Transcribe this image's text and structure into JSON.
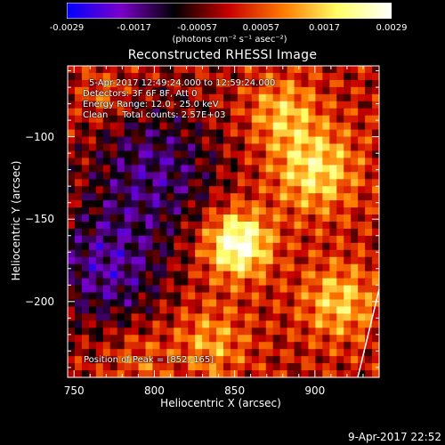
{
  "colorbar": {
    "tick_labels": [
      "-0.0029",
      "-0.0017",
      "-0.00057",
      "0.00057",
      "0.0017",
      "0.0029"
    ],
    "tick_values": [
      -0.0029,
      -0.0017,
      -0.00057,
      0.00057,
      0.0017,
      0.0029
    ],
    "units_label": "(photons cm⁻² s⁻¹ asec⁻²)",
    "colors": [
      "#0000ff",
      "#7a00c8",
      "#000000",
      "#c80000",
      "#ff7a00",
      "#ffff66",
      "#ffffff"
    ]
  },
  "title": "Reconstructed RHESSI Image",
  "annotations": {
    "time_range": "5-Apr-2017 12:49:24.000 to 12:59:24.000",
    "detectors": "Detectors: 3F 6F 8F, Att 0",
    "energy": "Energy Range: 12.0 - 25.0 keV",
    "clean": "Clean     Total counts: 2.57E+03",
    "peak": "Position of Peak = [852,-165]"
  },
  "timestamp": "9-Apr-2017 22:52",
  "chart_data": {
    "type": "heatmap",
    "title": "Reconstructed RHESSI Image",
    "xlabel": "Heliocentric X (arcsec)",
    "ylabel": "Heliocentric Y (arcsec)",
    "xlim": [
      746,
      940
    ],
    "ylim": [
      -246,
      -57
    ],
    "x_tick_values": [
      750,
      800,
      850,
      900
    ],
    "x_tick_labels": [
      "750",
      "800",
      "850",
      "900"
    ],
    "y_tick_values": [
      -100,
      -150,
      -200
    ],
    "y_tick_labels": [
      "−100",
      "−150",
      "−200"
    ],
    "color_range": [
      -0.0029,
      0.0029
    ],
    "peak_position": [
      852,
      -165
    ],
    "sources": [
      {
        "x": 852,
        "y": -165,
        "amplitude": 0.0029,
        "sigma": 14
      },
      {
        "x": 900,
        "y": -120,
        "amplitude": 0.0019,
        "sigma": 18
      },
      {
        "x": 915,
        "y": -200,
        "amplitude": 0.0016,
        "sigma": 16
      },
      {
        "x": 880,
        "y": -85,
        "amplitude": 0.0014,
        "sigma": 15
      },
      {
        "x": 835,
        "y": -225,
        "amplitude": 0.0012,
        "sigma": 16
      },
      {
        "x": 790,
        "y": -235,
        "amplitude": 0.0008,
        "sigma": 12
      },
      {
        "x": 770,
        "y": -75,
        "amplitude": 0.0009,
        "sigma": 10
      },
      {
        "x": 800,
        "y": -120,
        "amplitude": -0.0015,
        "sigma": 28
      },
      {
        "x": 770,
        "y": -180,
        "amplitude": -0.0017,
        "sigma": 25
      }
    ]
  }
}
